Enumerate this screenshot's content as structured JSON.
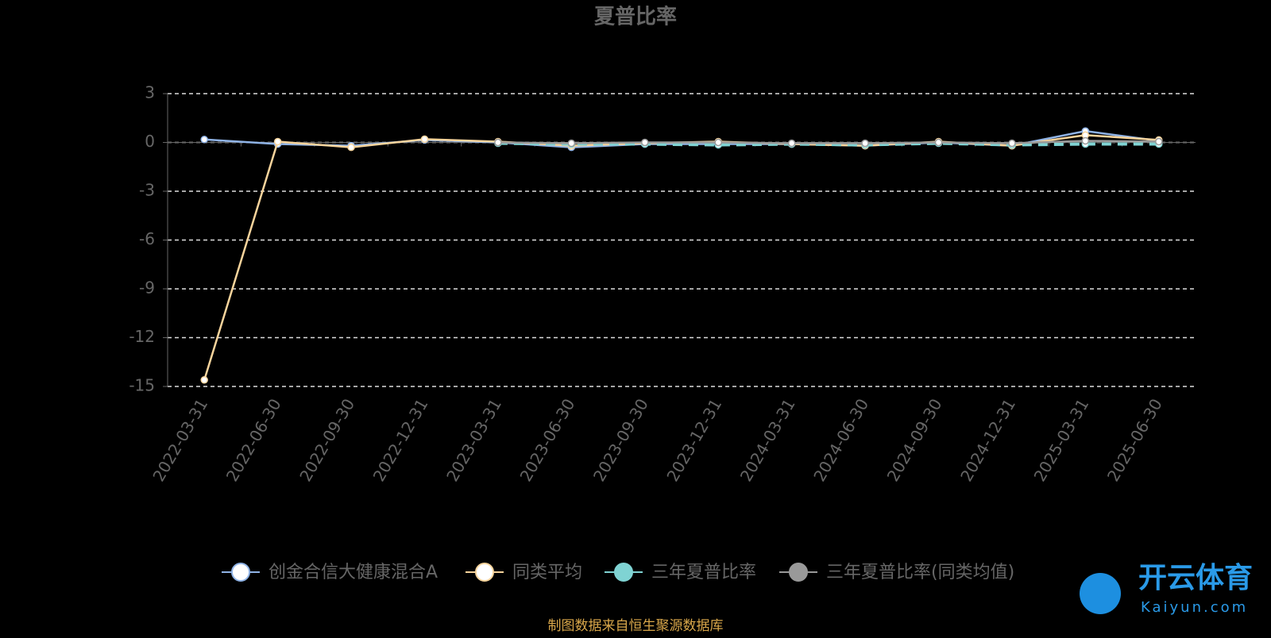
{
  "chart_data": {
    "type": "line",
    "title": "夏普比率",
    "categories": [
      "2022-03-31",
      "2022-06-30",
      "2022-09-30",
      "2022-12-31",
      "2023-03-31",
      "2023-06-30",
      "2023-09-30",
      "2023-12-31",
      "2024-03-31",
      "2024-06-30",
      "2024-09-30",
      "2024-12-31",
      "2025-03-31",
      "2025-06-30"
    ],
    "series": [
      {
        "name": "创金合信大健康混合A",
        "color": "#8fb3e6",
        "values": [
          0.18,
          -0.1,
          -0.2,
          0.15,
          0.0,
          -0.3,
          -0.1,
          -0.1,
          -0.1,
          -0.2,
          0.0,
          -0.2,
          0.7,
          0.1
        ]
      },
      {
        "name": "同类平均",
        "color": "#f7d49c",
        "values": [
          -14.6,
          0.05,
          -0.3,
          0.2,
          0.05,
          -0.2,
          -0.05,
          0.05,
          -0.1,
          -0.2,
          0.05,
          -0.2,
          0.45,
          0.15
        ]
      },
      {
        "name": "三年夏普比率",
        "color": "#7fd3d3",
        "dashed": true,
        "values": [
          null,
          null,
          null,
          null,
          -0.05,
          -0.1,
          -0.1,
          -0.15,
          -0.1,
          -0.15,
          -0.05,
          -0.15,
          -0.1,
          -0.1
        ]
      },
      {
        "name": "三年夏普比率(同类均值)",
        "color": "#999999",
        "values": [
          null,
          null,
          null,
          null,
          0.0,
          -0.05,
          0.0,
          0.0,
          -0.05,
          -0.05,
          0.0,
          -0.05,
          0.1,
          0.05
        ]
      }
    ],
    "ylim": [
      -15,
      3
    ],
    "yticks": [
      3,
      0,
      -3,
      -6,
      -9,
      -12,
      -15
    ],
    "grid": true,
    "source": "制图数据来自恒生聚源数据库",
    "watermark": {
      "brand": "开云体育",
      "site": "Kaiyun.com"
    }
  }
}
